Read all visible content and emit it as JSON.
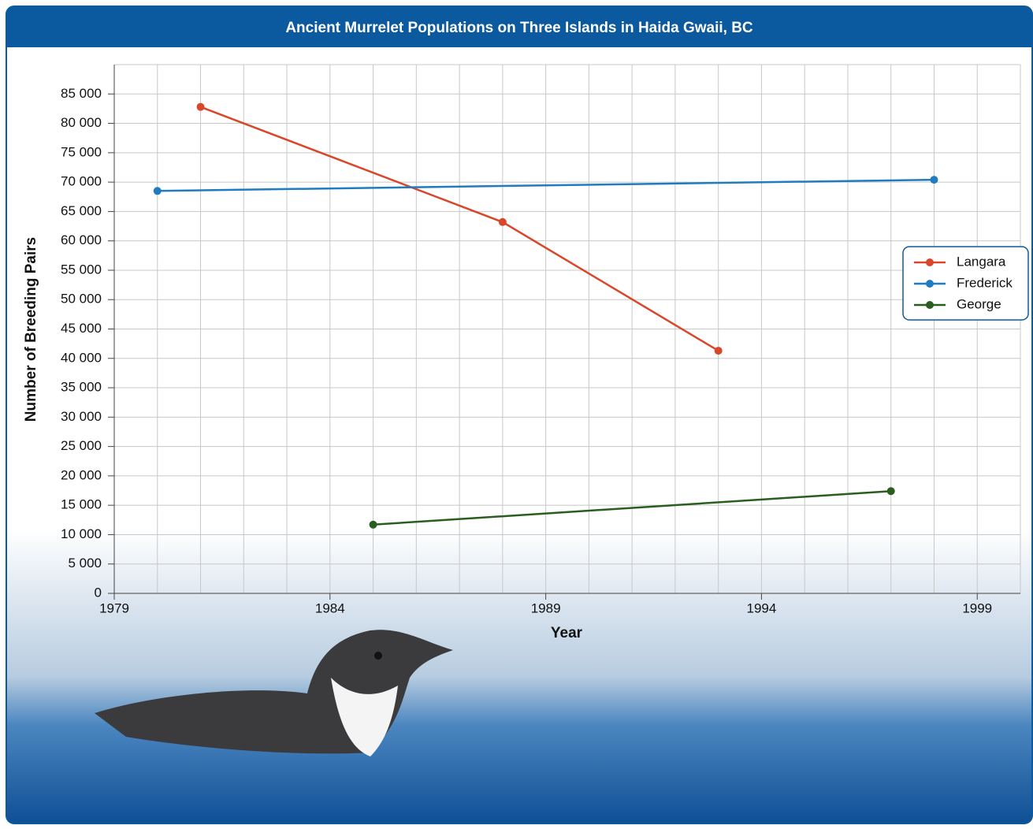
{
  "chart_data": {
    "type": "line",
    "title": "Ancient Murrelet Populations on Three Islands in Haida Gwaii, BC",
    "x_label": "Year",
    "y_label": "Number of Breeding Pairs",
    "xlim": [
      1979,
      2000
    ],
    "xticks": [
      1979,
      1984,
      1989,
      1994,
      1999
    ],
    "ylim": [
      0,
      90000
    ],
    "yticks": [
      0,
      {
        "value": 5000,
        "label": "5 000"
      },
      {
        "value": 10000,
        "label": "10 000"
      },
      {
        "value": 15000,
        "label": "15 000"
      },
      {
        "value": 20000,
        "label": "20 000"
      },
      {
        "value": 25000,
        "label": "25 000"
      },
      {
        "value": 30000,
        "label": "30 000"
      },
      {
        "value": 35000,
        "label": "35 000"
      },
      {
        "value": 40000,
        "label": "40 000"
      },
      {
        "value": 45000,
        "label": "45 000"
      },
      {
        "value": 50000,
        "label": "50 000"
      },
      {
        "value": 55000,
        "label": "55 000"
      },
      {
        "value": 60000,
        "label": "60 000"
      },
      {
        "value": 65000,
        "label": "65 000"
      },
      {
        "value": 70000,
        "label": "70 000"
      },
      {
        "value": 75000,
        "label": "75 000"
      },
      {
        "value": 80000,
        "label": "80 000"
      },
      {
        "value": 85000,
        "label": "85 000"
      }
    ],
    "grid": true,
    "legend": "right",
    "series": [
      {
        "name": "Langara",
        "color": "#d9472a",
        "x": [
          1981,
          1988,
          1993
        ],
        "values": [
          82800,
          63200,
          41300
        ]
      },
      {
        "name": "Frederick",
        "color": "#1f7cc1",
        "x": [
          1980,
          1998
        ],
        "values": [
          68500,
          70400
        ]
      },
      {
        "name": "George",
        "color": "#2a5e1e",
        "x": [
          1985,
          1997
        ],
        "values": [
          11700,
          17400
        ]
      }
    ]
  }
}
